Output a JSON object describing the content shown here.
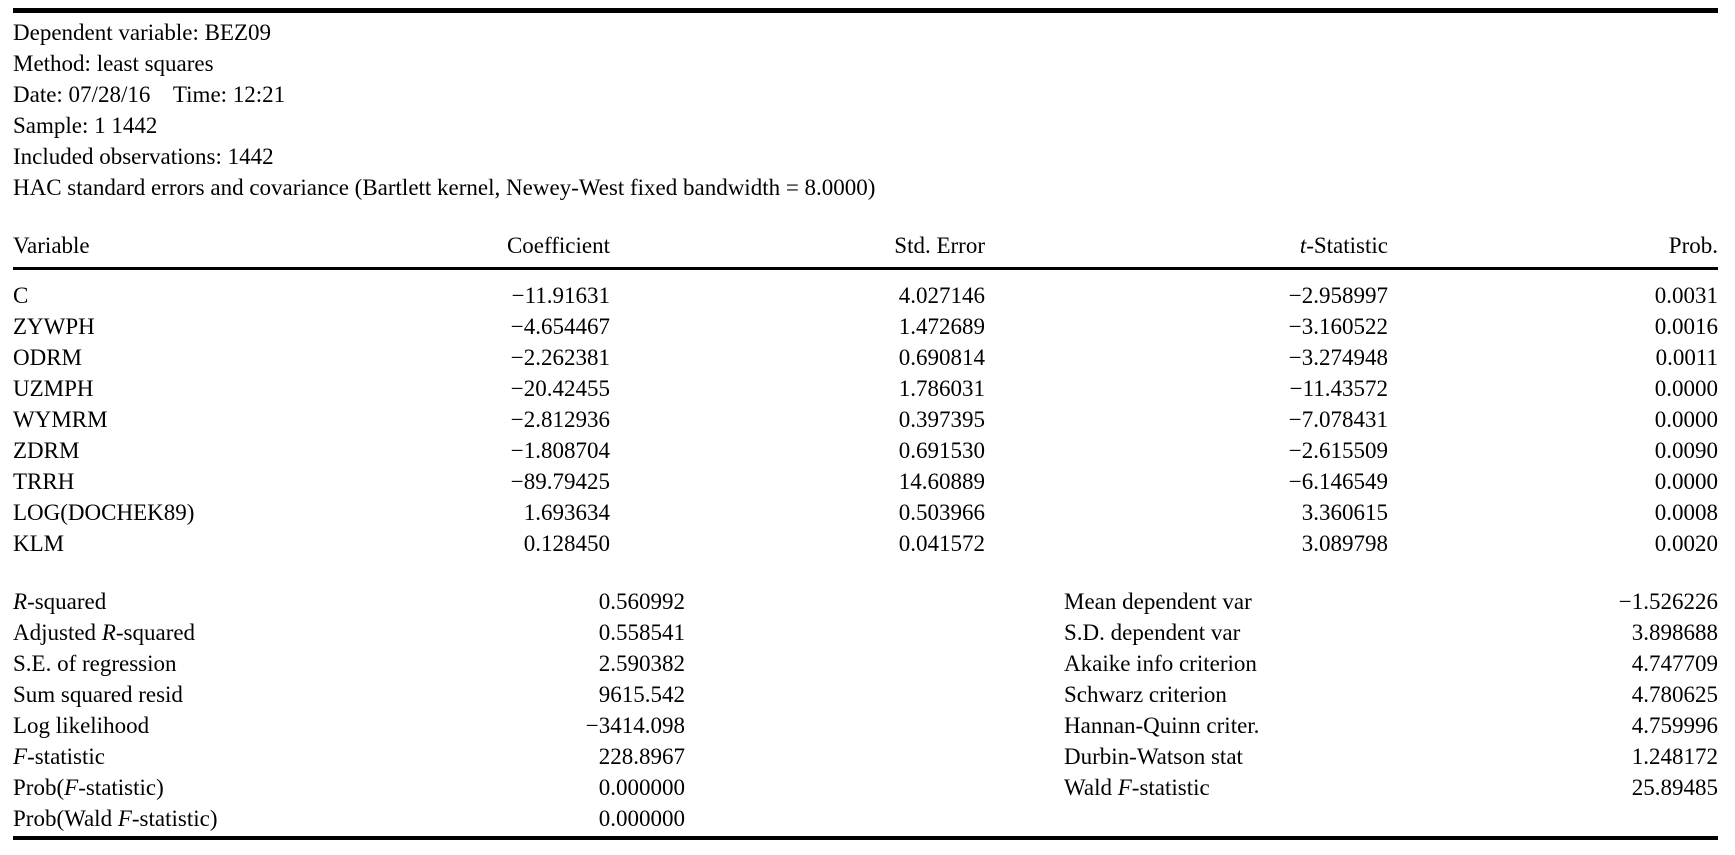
{
  "meta": {
    "lines": [
      "Dependent variable: BEZ09",
      "Method: least squares",
      "Date: 07/28/16    Time: 12:21",
      "Sample: 1 1442",
      "Included observations: 1442",
      "HAC standard errors and covariance (Bartlett kernel, Newey-West fixed bandwidth = 8.0000)"
    ]
  },
  "coef_table": {
    "headers": [
      "Variable",
      "Coefficient",
      "Std. Error",
      "*t*-Statistic",
      "Prob."
    ],
    "rows": [
      {
        "variable": "C",
        "coefficient": "−11.91631",
        "std_error": "4.027146",
        "t_statistic": "−2.958997",
        "prob": "0.0031"
      },
      {
        "variable": "ZYWPH",
        "coefficient": "−4.654467",
        "std_error": "1.472689",
        "t_statistic": "−3.160522",
        "prob": "0.0016"
      },
      {
        "variable": "ODRM",
        "coefficient": "−2.262381",
        "std_error": "0.690814",
        "t_statistic": "−3.274948",
        "prob": "0.0011"
      },
      {
        "variable": "UZMPH",
        "coefficient": "−20.42455",
        "std_error": "1.786031",
        "t_statistic": "−11.43572",
        "prob": "0.0000"
      },
      {
        "variable": "WYMRM",
        "coefficient": "−2.812936",
        "std_error": "0.397395",
        "t_statistic": "−7.078431",
        "prob": "0.0000"
      },
      {
        "variable": "ZDRM",
        "coefficient": "−1.808704",
        "std_error": "0.691530",
        "t_statistic": "−2.615509",
        "prob": "0.0090"
      },
      {
        "variable": "TRRH",
        "coefficient": "−89.79425",
        "std_error": "14.60889",
        "t_statistic": "−6.146549",
        "prob": "0.0000"
      },
      {
        "variable": "LOG(DOCHEK89)",
        "coefficient": "1.693634",
        "std_error": "0.503966",
        "t_statistic": "3.360615",
        "prob": "0.0008"
      },
      {
        "variable": "KLM",
        "coefficient": "0.128450",
        "std_error": "0.041572",
        "t_statistic": "3.089798",
        "prob": "0.0020"
      }
    ]
  },
  "summary_rows": [
    {
      "left_label": "*R*-squared",
      "left_value": "0.560992",
      "right_label": "Mean dependent var",
      "right_value": "−1.526226"
    },
    {
      "left_label": "Adjusted *R*-squared",
      "left_value": "0.558541",
      "right_label": "S.D. dependent var",
      "right_value": "3.898688"
    },
    {
      "left_label": "S.E. of regression",
      "left_value": "2.590382",
      "right_label": "Akaike info criterion",
      "right_value": "4.747709"
    },
    {
      "left_label": "Sum squared resid",
      "left_value": "9615.542",
      "right_label": "Schwarz criterion",
      "right_value": "4.780625"
    },
    {
      "left_label": "Log likelihood",
      "left_value": "−3414.098",
      "right_label": "Hannan-Quinn criter.",
      "right_value": "4.759996"
    },
    {
      "left_label": "*F*-statistic",
      "left_value": "228.8967",
      "right_label": "Durbin-Watson stat",
      "right_value": "1.248172"
    },
    {
      "left_label": "Prob(*F*-statistic)",
      "left_value": "0.000000",
      "right_label": "Wald *F*-statistic",
      "right_value": "25.89485"
    },
    {
      "left_label": "Prob(Wald *F*-statistic)",
      "left_value": "0.000000",
      "right_label": "",
      "right_value": ""
    }
  ],
  "colors": {
    "background": "#ffffff",
    "text": "#000000",
    "rule": "#000000"
  }
}
